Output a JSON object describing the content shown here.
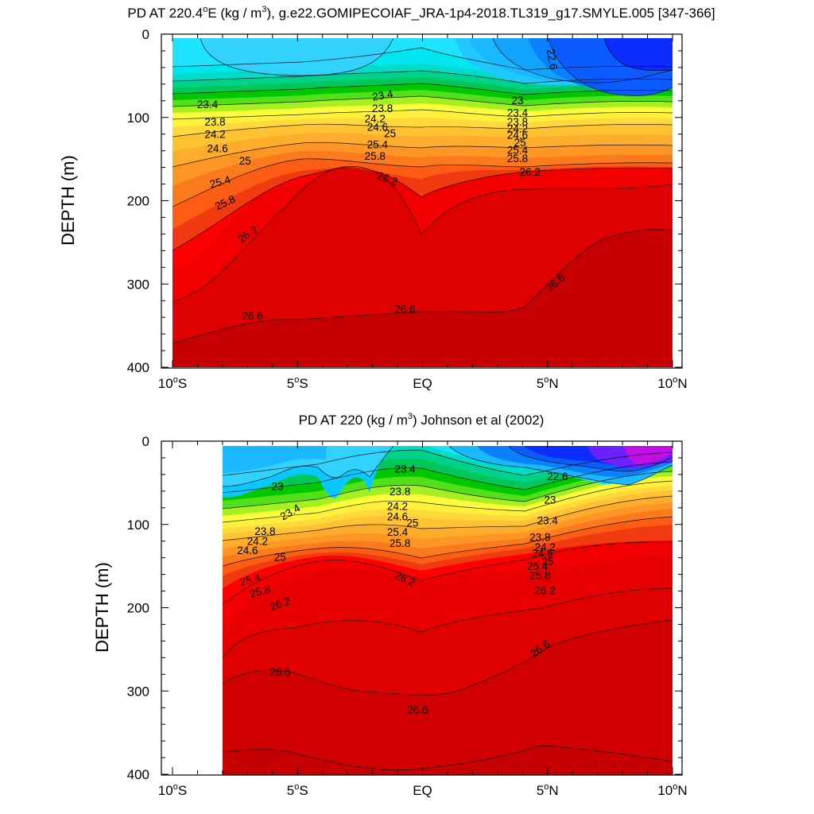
{
  "chart_data": [
    {
      "type": "contour",
      "title_main": "PD AT 220.4",
      "title_deg": "o",
      "title_unit_pre": "E (kg / m",
      "title_unit_sup": "3",
      "title_rest": "), g.e22.GOMIPECOIAF_JRA-1p4-2018.TL319_g17.SMYLE.005 [347-366]",
      "xlabel": "",
      "ylabel": "DEPTH (m)",
      "xlim": [
        -10,
        10
      ],
      "ylim": [
        0,
        400
      ],
      "y_reversed": true,
      "x_ticks": [
        {
          "value": -10,
          "num": "10",
          "deg": "o",
          "hemi": "S"
        },
        {
          "value": -5,
          "num": "5",
          "deg": "o",
          "hemi": "S"
        },
        {
          "value": 0,
          "num": "EQ",
          "deg": "",
          "hemi": ""
        },
        {
          "value": 5,
          "num": "5",
          "deg": "o",
          "hemi": "N"
        },
        {
          "value": 10,
          "num": "10",
          "deg": "o",
          "hemi": "N"
        }
      ],
      "y_ticks": [
        {
          "value": 0,
          "label": "0"
        },
        {
          "value": 100,
          "label": "100"
        },
        {
          "value": 200,
          "label": "200"
        },
        {
          "value": 300,
          "label": "300"
        },
        {
          "value": 400,
          "label": "400"
        }
      ],
      "data_extent": {
        "x": [
          -10,
          10
        ],
        "depth": [
          5,
          400
        ]
      },
      "contour_labels": [
        {
          "text": "22.6",
          "x": 5.2,
          "depth": 30,
          "angle": 80
        },
        {
          "text": "23.4",
          "x": -8.6,
          "depth": 84
        },
        {
          "text": "23.8",
          "x": -8.3,
          "depth": 105
        },
        {
          "text": "24.2",
          "x": -8.3,
          "depth": 120
        },
        {
          "text": "24.6",
          "x": -8.2,
          "depth": 137
        },
        {
          "text": "25",
          "x": -7.1,
          "depth": 152
        },
        {
          "text": "25.4",
          "x": -8.1,
          "depth": 177,
          "angle": -15
        },
        {
          "text": "25.8",
          "x": -7.9,
          "depth": 202,
          "angle": -25
        },
        {
          "text": "26.2",
          "x": -7.0,
          "depth": 240,
          "angle": -35
        },
        {
          "text": "26.6",
          "x": -6.8,
          "depth": 338
        },
        {
          "text": "23.4",
          "x": -1.6,
          "depth": 73,
          "angle": -10
        },
        {
          "text": "23.8",
          "x": -1.6,
          "depth": 89
        },
        {
          "text": "24.2",
          "x": -1.9,
          "depth": 101
        },
        {
          "text": "24.6",
          "x": -1.8,
          "depth": 111
        },
        {
          "text": "25",
          "x": -1.3,
          "depth": 119
        },
        {
          "text": "25.4",
          "x": -1.8,
          "depth": 132
        },
        {
          "text": "25.8",
          "x": -1.9,
          "depth": 146
        },
        {
          "text": "26.2",
          "x": -1.4,
          "depth": 173,
          "angle": 20
        },
        {
          "text": "26.6",
          "x": -0.7,
          "depth": 330
        },
        {
          "text": "23",
          "x": 3.8,
          "depth": 79
        },
        {
          "text": "23.4",
          "x": 3.8,
          "depth": 94
        },
        {
          "text": "23.8",
          "x": 3.8,
          "depth": 105
        },
        {
          "text": "24.2",
          "x": 3.8,
          "depth": 113
        },
        {
          "text": "24.6",
          "x": 3.8,
          "depth": 121
        },
        {
          "text": "25",
          "x": 3.9,
          "depth": 130
        },
        {
          "text": "25.4",
          "x": 3.8,
          "depth": 139
        },
        {
          "text": "25.8",
          "x": 3.8,
          "depth": 149
        },
        {
          "text": "26.2",
          "x": 4.3,
          "depth": 165
        },
        {
          "text": "26.6",
          "x": 5.3,
          "depth": 298,
          "angle": -40
        }
      ]
    },
    {
      "type": "contour",
      "title_main": "PD AT 220 (kg / m",
      "title_deg": "",
      "title_unit_pre": "",
      "title_unit_sup": "3",
      "title_rest": ") Johnson et al (2002)",
      "xlabel": "",
      "ylabel": "DEPTH (m)",
      "xlim": [
        -10,
        10
      ],
      "ylim": [
        0,
        400
      ],
      "y_reversed": true,
      "x_ticks": [
        {
          "value": -10,
          "num": "10",
          "deg": "o",
          "hemi": "S"
        },
        {
          "value": -5,
          "num": "5",
          "deg": "o",
          "hemi": "S"
        },
        {
          "value": 0,
          "num": "EQ",
          "deg": "",
          "hemi": ""
        },
        {
          "value": 5,
          "num": "5",
          "deg": "o",
          "hemi": "N"
        },
        {
          "value": 10,
          "num": "10",
          "deg": "o",
          "hemi": "N"
        }
      ],
      "y_ticks": [
        {
          "value": 0,
          "label": "0"
        },
        {
          "value": 100,
          "label": "100"
        },
        {
          "value": 200,
          "label": "200"
        },
        {
          "value": 300,
          "label": "300"
        },
        {
          "value": 400,
          "label": "400"
        }
      ],
      "data_extent": {
        "x": [
          -8,
          10
        ],
        "depth": [
          5,
          400
        ]
      },
      "contour_labels": [
        {
          "text": "23",
          "x": -5.8,
          "depth": 54
        },
        {
          "text": "23.4",
          "x": -5.3,
          "depth": 85,
          "angle": -30
        },
        {
          "text": "23.8",
          "x": -6.3,
          "depth": 108
        },
        {
          "text": "24.2",
          "x": -6.6,
          "depth": 120
        },
        {
          "text": "24.6",
          "x": -7.0,
          "depth": 131
        },
        {
          "text": "25",
          "x": -5.7,
          "depth": 139
        },
        {
          "text": "25.4",
          "x": -6.9,
          "depth": 166,
          "angle": -15
        },
        {
          "text": "25.8",
          "x": -6.5,
          "depth": 180,
          "angle": -15
        },
        {
          "text": "26.2",
          "x": -5.7,
          "depth": 195,
          "angle": -20
        },
        {
          "text": "26.6",
          "x": -5.7,
          "depth": 277
        },
        {
          "text": "23.4",
          "x": -0.7,
          "depth": 33
        },
        {
          "text": "23.8",
          "x": -0.9,
          "depth": 60
        },
        {
          "text": "24.2",
          "x": -1.0,
          "depth": 78
        },
        {
          "text": "24.6",
          "x": -1.0,
          "depth": 90
        },
        {
          "text": "25",
          "x": -0.4,
          "depth": 98
        },
        {
          "text": "25.4",
          "x": -1.0,
          "depth": 109
        },
        {
          "text": "25.8",
          "x": -0.9,
          "depth": 122
        },
        {
          "text": "26.2",
          "x": -0.7,
          "depth": 165,
          "angle": 25
        },
        {
          "text": "26.6",
          "x": -0.2,
          "depth": 322
        },
        {
          "text": "22.6",
          "x": 5.4,
          "depth": 42
        },
        {
          "text": "23",
          "x": 5.1,
          "depth": 70
        },
        {
          "text": "23.4",
          "x": 5.0,
          "depth": 95
        },
        {
          "text": "23.8",
          "x": 4.7,
          "depth": 115
        },
        {
          "text": "24.2",
          "x": 4.9,
          "depth": 127
        },
        {
          "text": "24.6",
          "x": 4.8,
          "depth": 134
        },
        {
          "text": "25",
          "x": 5.0,
          "depth": 144
        },
        {
          "text": "25.4",
          "x": 4.6,
          "depth": 150
        },
        {
          "text": "25.8",
          "x": 4.7,
          "depth": 161
        },
        {
          "text": "26.2",
          "x": 4.9,
          "depth": 179
        },
        {
          "text": "26.6",
          "x": 4.7,
          "depth": 249,
          "angle": -35
        }
      ]
    }
  ]
}
